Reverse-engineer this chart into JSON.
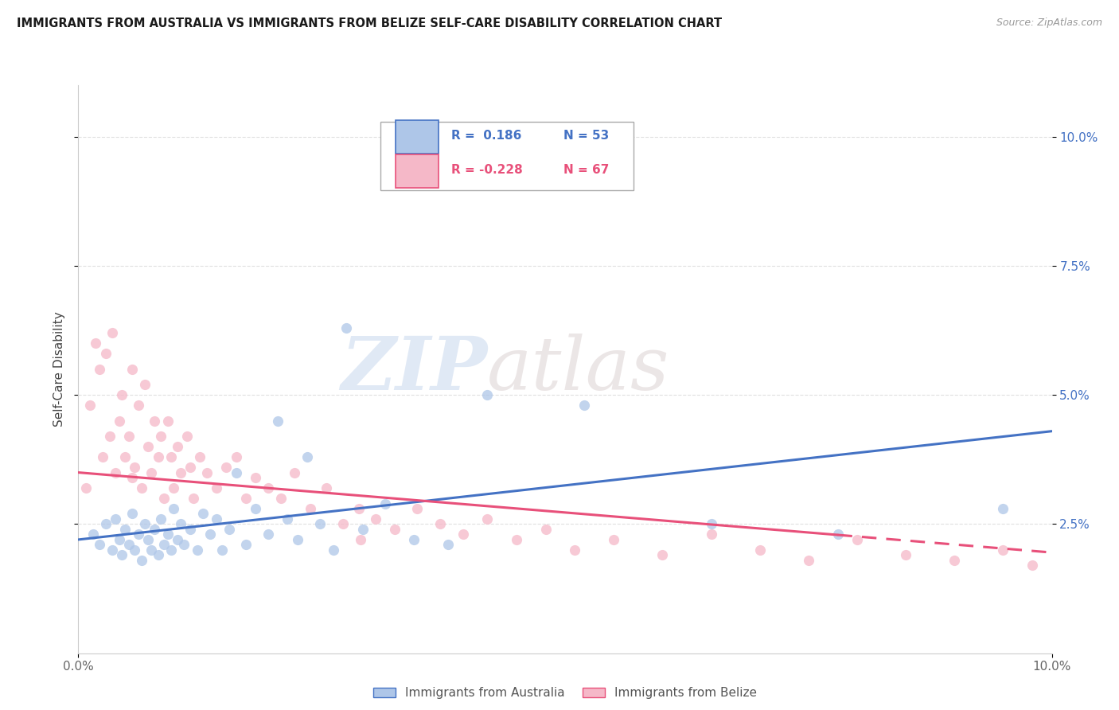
{
  "title": "IMMIGRANTS FROM AUSTRALIA VS IMMIGRANTS FROM BELIZE SELF-CARE DISABILITY CORRELATION CHART",
  "source": "Source: ZipAtlas.com",
  "ylabel": "Self-Care Disability",
  "xmin": 0.0,
  "xmax": 10.0,
  "ymin": 0.0,
  "ymax": 11.0,
  "yticks": [
    2.5,
    5.0,
    7.5,
    10.0
  ],
  "ytick_labels": [
    "2.5%",
    "5.0%",
    "7.5%",
    "10.0%"
  ],
  "legend_r_australia": "R =  0.186",
  "legend_n_australia": "N = 53",
  "legend_r_belize": "R = -0.228",
  "legend_n_belize": "N = 67",
  "australia_color": "#aec6e8",
  "belize_color": "#f5b8c8",
  "australia_line_color": "#4472c4",
  "belize_line_color": "#e8507a",
  "watermark_zip": "ZIP",
  "watermark_atlas": "atlas",
  "aus_line_x0": 0.0,
  "aus_line_y0": 2.2,
  "aus_line_x1": 10.0,
  "aus_line_y1": 4.3,
  "bel_line_x0": 0.0,
  "bel_line_y0": 3.5,
  "bel_line_x1": 10.0,
  "bel_line_y1": 1.95,
  "australia_scatter_x": [
    0.15,
    0.22,
    0.28,
    0.35,
    0.38,
    0.42,
    0.45,
    0.48,
    0.52,
    0.55,
    0.58,
    0.62,
    0.65,
    0.68,
    0.72,
    0.75,
    0.78,
    0.82,
    0.85,
    0.88,
    0.92,
    0.95,
    0.98,
    1.02,
    1.05,
    1.08,
    1.15,
    1.22,
    1.28,
    1.35,
    1.42,
    1.48,
    1.55,
    1.62,
    1.72,
    1.82,
    1.95,
    2.05,
    2.15,
    2.25,
    2.35,
    2.48,
    2.62,
    2.75,
    2.92,
    3.15,
    3.45,
    3.8,
    4.2,
    5.2,
    6.5,
    7.8,
    9.5
  ],
  "australia_scatter_y": [
    2.3,
    2.1,
    2.5,
    2.0,
    2.6,
    2.2,
    1.9,
    2.4,
    2.1,
    2.7,
    2.0,
    2.3,
    1.8,
    2.5,
    2.2,
    2.0,
    2.4,
    1.9,
    2.6,
    2.1,
    2.3,
    2.0,
    2.8,
    2.2,
    2.5,
    2.1,
    2.4,
    2.0,
    2.7,
    2.3,
    2.6,
    2.0,
    2.4,
    3.5,
    2.1,
    2.8,
    2.3,
    4.5,
    2.6,
    2.2,
    3.8,
    2.5,
    2.0,
    6.3,
    2.4,
    2.9,
    2.2,
    2.1,
    5.0,
    4.8,
    2.5,
    2.3,
    2.8
  ],
  "belize_scatter_x": [
    0.08,
    0.12,
    0.18,
    0.22,
    0.25,
    0.28,
    0.32,
    0.35,
    0.38,
    0.42,
    0.45,
    0.48,
    0.52,
    0.55,
    0.58,
    0.62,
    0.65,
    0.68,
    0.72,
    0.75,
    0.78,
    0.82,
    0.85,
    0.88,
    0.92,
    0.95,
    0.98,
    1.02,
    1.05,
    1.12,
    1.18,
    1.25,
    1.32,
    1.42,
    1.52,
    1.62,
    1.72,
    1.82,
    1.95,
    2.08,
    2.22,
    2.38,
    2.55,
    2.72,
    2.88,
    3.05,
    3.25,
    3.48,
    3.72,
    3.95,
    4.2,
    4.5,
    4.8,
    5.1,
    5.5,
    6.0,
    6.5,
    7.0,
    7.5,
    8.0,
    8.5,
    9.0,
    9.5,
    9.8,
    2.9,
    0.55,
    1.15
  ],
  "belize_scatter_y": [
    3.2,
    4.8,
    6.0,
    5.5,
    3.8,
    5.8,
    4.2,
    6.2,
    3.5,
    4.5,
    5.0,
    3.8,
    4.2,
    5.5,
    3.6,
    4.8,
    3.2,
    5.2,
    4.0,
    3.5,
    4.5,
    3.8,
    4.2,
    3.0,
    4.5,
    3.8,
    3.2,
    4.0,
    3.5,
    4.2,
    3.0,
    3.8,
    3.5,
    3.2,
    3.6,
    3.8,
    3.0,
    3.4,
    3.2,
    3.0,
    3.5,
    2.8,
    3.2,
    2.5,
    2.8,
    2.6,
    2.4,
    2.8,
    2.5,
    2.3,
    2.6,
    2.2,
    2.4,
    2.0,
    2.2,
    1.9,
    2.3,
    2.0,
    1.8,
    2.2,
    1.9,
    1.8,
    2.0,
    1.7,
    2.2,
    3.4,
    3.6
  ]
}
